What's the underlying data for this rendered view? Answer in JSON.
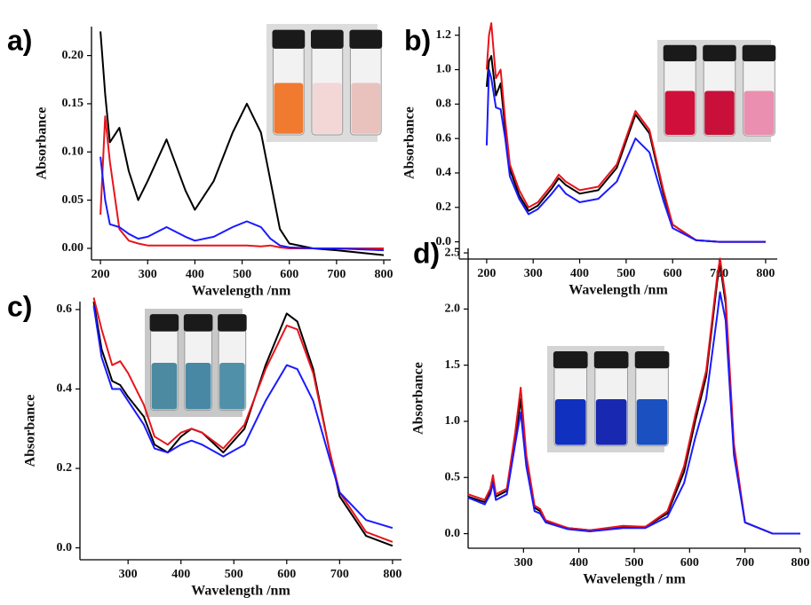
{
  "chart_data": [
    {
      "type": "line",
      "panel_label": "a)",
      "x_label": "Wavelength /nm",
      "y_label": "Absorbance",
      "x": [
        200,
        210,
        220,
        240,
        260,
        280,
        300,
        340,
        380,
        400,
        440,
        480,
        510,
        540,
        560,
        580,
        600,
        650,
        700,
        800
      ],
      "series": [
        {
          "color": "#000000",
          "values": [
            0.225,
            0.16,
            0.11,
            0.125,
            0.08,
            0.05,
            0.07,
            0.113,
            0.06,
            0.04,
            0.07,
            0.12,
            0.15,
            0.12,
            0.07,
            0.02,
            0.005,
            0.0,
            -0.002,
            -0.007
          ]
        },
        {
          "color": "#e8141c",
          "values": [
            0.035,
            0.137,
            0.09,
            0.02,
            0.008,
            0.005,
            0.003,
            0.003,
            0.003,
            0.003,
            0.003,
            0.003,
            0.003,
            0.002,
            0.003,
            0.001,
            0.0,
            0.0,
            0.0,
            0.0
          ]
        },
        {
          "color": "#1a1aff",
          "values": [
            0.095,
            0.05,
            0.025,
            0.022,
            0.015,
            0.01,
            0.012,
            0.022,
            0.012,
            0.008,
            0.012,
            0.022,
            0.028,
            0.022,
            0.01,
            0.003,
            0.001,
            0.0,
            0.0,
            -0.002
          ]
        }
      ],
      "xlim": [
        181,
        815
      ],
      "ylim": [
        -0.012,
        0.23
      ],
      "xticks": [
        200,
        300,
        400,
        500,
        600,
        700,
        800
      ],
      "yticks": [
        {
          "value": 0,
          "label": "0.00"
        },
        {
          "value": 0.05,
          "label": "0.05"
        },
        {
          "value": 0.1,
          "label": "0.10"
        },
        {
          "value": 0.15,
          "label": "0.15"
        },
        {
          "value": 0.2,
          "label": "0.20"
        }
      ]
    },
    {
      "type": "line",
      "panel_label": "b)",
      "x_label": "Wavelength /nm",
      "y_label": "Absorbance",
      "x": [
        200,
        205,
        210,
        220,
        230,
        240,
        250,
        270,
        290,
        310,
        340,
        355,
        370,
        400,
        440,
        480,
        520,
        550,
        580,
        600,
        650,
        700,
        800
      ],
      "series": [
        {
          "color": "#000000",
          "values": [
            0.9,
            1.05,
            1.08,
            0.85,
            0.92,
            0.65,
            0.42,
            0.27,
            0.18,
            0.21,
            0.31,
            0.37,
            0.33,
            0.28,
            0.3,
            0.43,
            0.74,
            0.63,
            0.28,
            0.1,
            0.01,
            0,
            0
          ]
        },
        {
          "color": "#e8141c",
          "values": [
            1.0,
            1.2,
            1.27,
            0.95,
            1.0,
            0.7,
            0.45,
            0.3,
            0.2,
            0.23,
            0.33,
            0.39,
            0.35,
            0.3,
            0.32,
            0.45,
            0.76,
            0.65,
            0.3,
            0.1,
            0.01,
            0,
            0
          ]
        },
        {
          "color": "#1a1aff",
          "values": [
            0.56,
            1.0,
            0.95,
            0.78,
            0.77,
            0.6,
            0.38,
            0.25,
            0.16,
            0.19,
            0.28,
            0.33,
            0.28,
            0.23,
            0.25,
            0.35,
            0.6,
            0.52,
            0.24,
            0.08,
            0.01,
            0,
            0
          ]
        }
      ],
      "xlim": [
        141,
        825
      ],
      "ylim": [
        -0.1,
        1.25
      ],
      "xticks": [
        200,
        300,
        400,
        500,
        600,
        700,
        800
      ],
      "yticks": [
        {
          "value": 0,
          "label": "0.0"
        },
        0.2,
        0.4,
        0.6,
        0.8,
        {
          "value": 1,
          "label": "1.0"
        },
        1.2
      ]
    },
    {
      "type": "line",
      "panel_label": "c)",
      "x_label": "Wavelength /nm",
      "y_label": "Absorbance",
      "x": [
        235,
        250,
        270,
        285,
        300,
        330,
        350,
        375,
        400,
        420,
        440,
        480,
        520,
        560,
        600,
        620,
        650,
        680,
        700,
        750,
        800
      ],
      "series": [
        {
          "color": "#000000",
          "values": [
            0.62,
            0.5,
            0.42,
            0.41,
            0.38,
            0.33,
            0.26,
            0.24,
            0.28,
            0.3,
            0.29,
            0.24,
            0.3,
            0.46,
            0.59,
            0.57,
            0.45,
            0.25,
            0.13,
            0.03,
            0.005
          ]
        },
        {
          "color": "#e8141c",
          "values": [
            0.63,
            0.55,
            0.46,
            0.47,
            0.44,
            0.36,
            0.28,
            0.26,
            0.29,
            0.3,
            0.29,
            0.25,
            0.31,
            0.45,
            0.56,
            0.55,
            0.44,
            0.25,
            0.14,
            0.04,
            0.015
          ]
        },
        {
          "color": "#1a1aff",
          "values": [
            0.61,
            0.48,
            0.4,
            0.4,
            0.37,
            0.31,
            0.25,
            0.24,
            0.26,
            0.27,
            0.26,
            0.23,
            0.26,
            0.37,
            0.46,
            0.45,
            0.37,
            0.23,
            0.14,
            0.07,
            0.05
          ]
        }
      ],
      "xlim": [
        209,
        817
      ],
      "ylim": [
        -0.03,
        0.62
      ],
      "xticks": [
        300,
        400,
        500,
        600,
        700,
        800
      ],
      "yticks": [
        {
          "value": 0,
          "label": "0.0"
        },
        0.2,
        0.4,
        0.6
      ]
    },
    {
      "type": "line",
      "panel_label": "d)",
      "x_label": "Wavelength / nm",
      "y_label": "Absorbance",
      "x": [
        200,
        230,
        240,
        245,
        250,
        270,
        285,
        295,
        305,
        320,
        330,
        340,
        380,
        420,
        480,
        520,
        560,
        590,
        610,
        630,
        650,
        655,
        665,
        680,
        700,
        750,
        800
      ],
      "series": [
        {
          "color": "#000000",
          "values": [
            0.33,
            0.28,
            0.38,
            0.48,
            0.33,
            0.38,
            0.85,
            1.2,
            0.65,
            0.23,
            0.2,
            0.11,
            0.05,
            0.03,
            0.06,
            0.06,
            0.18,
            0.55,
            1.0,
            1.4,
            2.25,
            2.4,
            2.05,
            0.75,
            0.1,
            0,
            0
          ]
        },
        {
          "color": "#e8141c",
          "values": [
            0.35,
            0.3,
            0.4,
            0.52,
            0.35,
            0.4,
            0.9,
            1.3,
            0.7,
            0.25,
            0.22,
            0.12,
            0.05,
            0.03,
            0.07,
            0.06,
            0.2,
            0.6,
            1.05,
            1.45,
            2.3,
            2.45,
            2.1,
            0.8,
            0.1,
            0,
            0
          ]
        },
        {
          "color": "#1a1aff",
          "values": [
            0.32,
            0.26,
            0.35,
            0.45,
            0.3,
            0.35,
            0.8,
            1.08,
            0.6,
            0.2,
            0.18,
            0.1,
            0.04,
            0.02,
            0.05,
            0.05,
            0.15,
            0.45,
            0.85,
            1.2,
            1.95,
            2.15,
            1.9,
            0.7,
            0.1,
            0,
            0
          ]
        }
      ],
      "xlim": [
        200,
        800
      ],
      "ylim": [
        -0.13,
        2.54
      ],
      "xticks": [
        300,
        400,
        500,
        600,
        700,
        800
      ],
      "yticks": [
        {
          "value": 0,
          "label": "0.0"
        },
        0.5,
        {
          "value": 1,
          "label": "1.0"
        },
        1.5,
        {
          "value": 2,
          "label": "2.0"
        },
        2.5
      ]
    }
  ]
}
